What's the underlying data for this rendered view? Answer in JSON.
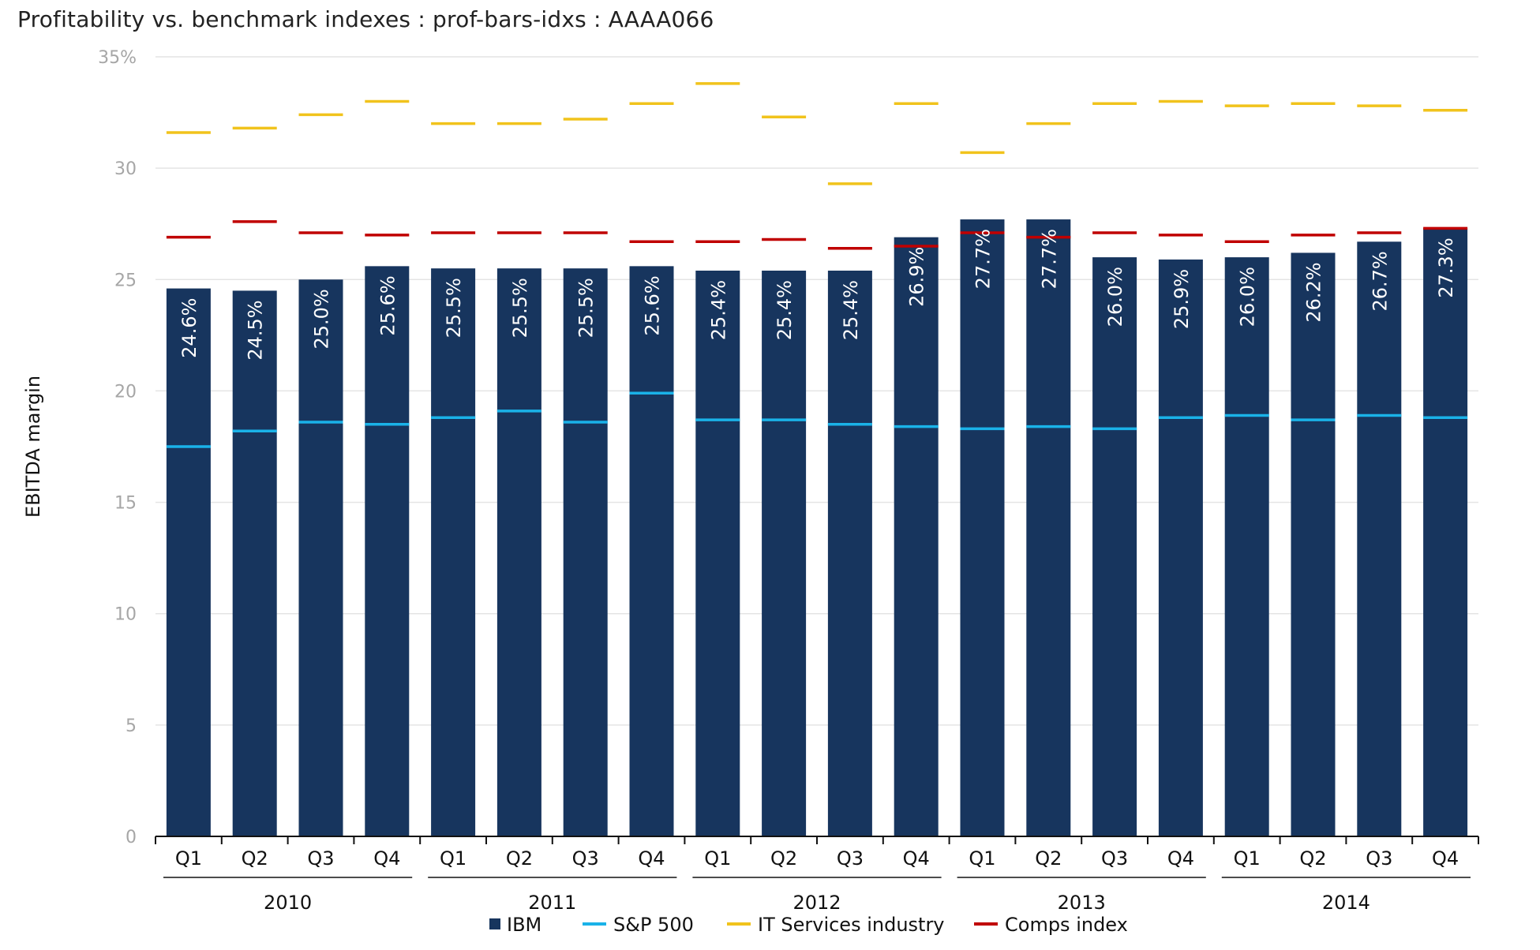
{
  "title": "Profitability vs. benchmark indexes : prof-bars-idxs : AAAA066",
  "chart_data": {
    "type": "bar",
    "ylabel": "EBITDA margin",
    "xlabel": "",
    "ylim": [
      0,
      35
    ],
    "yticks": [
      0,
      5,
      10,
      15,
      20,
      25,
      30,
      35
    ],
    "ytick_labels": [
      "0",
      "5",
      "10",
      "15",
      "20",
      "25",
      "30",
      "35%"
    ],
    "grid": "horizontal",
    "legend_position": "bottom",
    "categories": [
      "Q1",
      "Q2",
      "Q3",
      "Q4",
      "Q1",
      "Q2",
      "Q3",
      "Q4",
      "Q1",
      "Q2",
      "Q3",
      "Q4",
      "Q1",
      "Q2",
      "Q3",
      "Q4",
      "Q1",
      "Q2",
      "Q3",
      "Q4"
    ],
    "groups": [
      "2010",
      "2011",
      "2012",
      "2013",
      "2014"
    ],
    "series": [
      {
        "name": "IBM",
        "kind": "bar",
        "color": "#17355e",
        "values": [
          24.6,
          24.5,
          25.0,
          25.6,
          25.5,
          25.5,
          25.5,
          25.6,
          25.4,
          25.4,
          25.4,
          26.9,
          27.7,
          27.7,
          26.0,
          25.9,
          26.0,
          26.2,
          26.7,
          27.3
        ],
        "labels": [
          "24.6%",
          "24.5%",
          "25.0%",
          "25.6%",
          "25.5%",
          "25.5%",
          "25.5%",
          "25.6%",
          "25.4%",
          "25.4%",
          "25.4%",
          "26.9%",
          "27.7%",
          "27.7%",
          "26.0%",
          "25.9%",
          "26.0%",
          "26.2%",
          "26.7%",
          "27.3%"
        ]
      },
      {
        "name": "S&P 500",
        "kind": "marker",
        "color": "#1ab2e8",
        "values": [
          17.5,
          18.2,
          18.6,
          18.5,
          18.8,
          19.1,
          18.6,
          19.9,
          18.7,
          18.7,
          18.5,
          18.4,
          18.3,
          18.4,
          18.3,
          18.8,
          18.9,
          18.7,
          18.9,
          18.8
        ]
      },
      {
        "name": "IT Services industry",
        "kind": "marker",
        "color": "#f1c31c",
        "values": [
          31.6,
          31.8,
          32.4,
          33.0,
          32.0,
          32.0,
          32.2,
          32.9,
          33.8,
          32.3,
          29.3,
          32.9,
          30.7,
          32.0,
          32.9,
          33.0,
          32.8,
          32.9,
          32.8,
          32.6
        ]
      },
      {
        "name": "Comps index",
        "kind": "marker",
        "color": "#c00000",
        "values": [
          26.9,
          27.6,
          27.1,
          27.0,
          27.1,
          27.1,
          27.1,
          26.7,
          26.7,
          26.8,
          26.4,
          26.5,
          27.1,
          26.9,
          27.1,
          27.0,
          26.7,
          27.0,
          27.1,
          27.3
        ]
      }
    ]
  }
}
